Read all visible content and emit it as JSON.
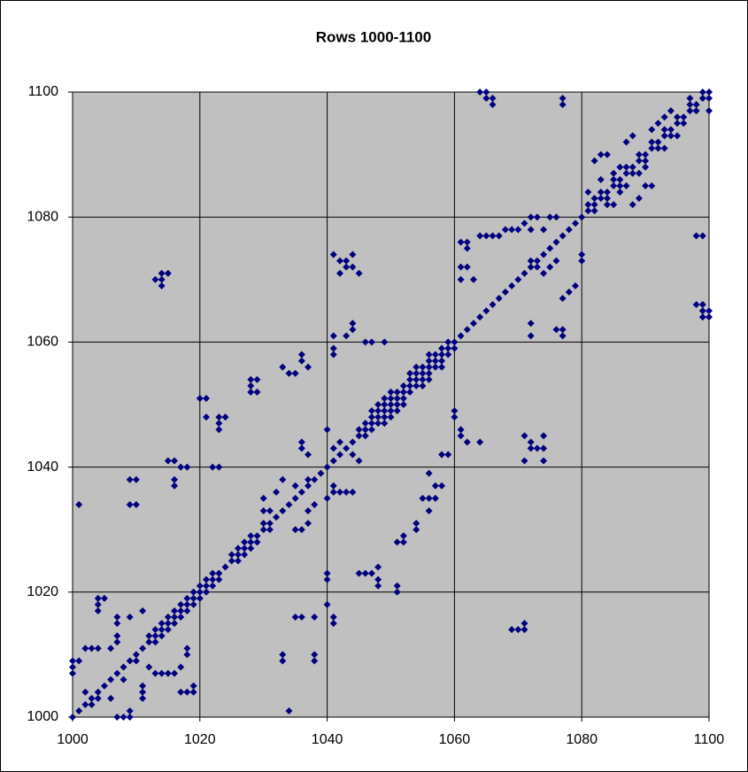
{
  "chart_data": {
    "type": "scatter",
    "title": "Rows 1000-1100",
    "xlim": [
      1000,
      1100
    ],
    "ylim": [
      1000,
      1100
    ],
    "xticks": [
      1000,
      1020,
      1040,
      1060,
      1080,
      1100
    ],
    "yticks": [
      1000,
      1020,
      1040,
      1060,
      1080,
      1100
    ],
    "grid": true,
    "background": "#c0c0c0",
    "series": [
      {
        "color": "#000080",
        "x": [
          1000,
          1001,
          1002,
          1003,
          1004,
          1005,
          1006,
          1007,
          1008,
          1009,
          1010,
          1011,
          1012,
          1013,
          1014,
          1015,
          1016,
          1017,
          1018,
          1019,
          1020,
          1021,
          1022,
          1023,
          1024,
          1025,
          1026,
          1027,
          1028,
          1029,
          1030,
          1031,
          1032,
          1033,
          1034,
          1035,
          1036,
          1037,
          1038,
          1039,
          1040,
          1041,
          1042,
          1043,
          1044,
          1045,
          1046,
          1047,
          1048,
          1049,
          1050,
          1051,
          1052,
          1053,
          1054,
          1055,
          1056,
          1057,
          1058,
          1059,
          1060,
          1061,
          1062,
          1063,
          1064,
          1065,
          1066,
          1067,
          1068,
          1069,
          1070,
          1071,
          1072,
          1073,
          1074,
          1075,
          1076,
          1077,
          1078,
          1079,
          1080,
          1081,
          1082,
          1083,
          1084,
          1085,
          1086,
          1087,
          1088,
          1089,
          1090,
          1091,
          1092,
          1093,
          1094,
          1095,
          1096,
          1097,
          1098,
          1099,
          1100
        ],
        "values": [
          1000,
          1001,
          1002,
          1003,
          1004,
          1005,
          1006,
          1007,
          1008,
          1009,
          1010,
          1011,
          1012,
          1013,
          1014,
          1015,
          1016,
          1017,
          1018,
          1019,
          1020,
          1021,
          1022,
          1023,
          1024,
          1025,
          1026,
          1027,
          1028,
          1029,
          1030,
          1031,
          1032,
          1033,
          1034,
          1035,
          1036,
          1037,
          1038,
          1039,
          1040,
          1041,
          1042,
          1043,
          1044,
          1045,
          1046,
          1047,
          1048,
          1049,
          1050,
          1051,
          1052,
          1053,
          1054,
          1055,
          1056,
          1057,
          1058,
          1059,
          1060,
          1061,
          1062,
          1063,
          1064,
          1065,
          1066,
          1067,
          1068,
          1069,
          1070,
          1071,
          1072,
          1073,
          1074,
          1075,
          1076,
          1077,
          1078,
          1079,
          1080,
          1081,
          1082,
          1083,
          1084,
          1085,
          1086,
          1087,
          1088,
          1089,
          1090,
          1091,
          1092,
          1093,
          1094,
          1095,
          1096,
          1097,
          1098,
          1099,
          1100
        ]
      },
      {
        "color": "#000080",
        "x": [
          1012,
          1013,
          1013,
          1014,
          1014,
          1015,
          1015,
          1016,
          1016,
          1017,
          1017,
          1018,
          1018,
          1019,
          1019,
          1020,
          1020,
          1021,
          1021,
          1022,
          1022,
          1023,
          1025,
          1026,
          1026,
          1027,
          1027,
          1028,
          1028,
          1029,
          1045,
          1046,
          1046,
          1047,
          1047,
          1048,
          1048,
          1049,
          1049,
          1050,
          1050,
          1051,
          1051,
          1052,
          1052,
          1053,
          1053,
          1054,
          1054,
          1055,
          1055,
          1056,
          1056,
          1057,
          1057,
          1058,
          1058,
          1059,
          1059,
          1060,
          1081,
          1082,
          1083,
          1084,
          1085,
          1086,
          1087,
          1088,
          1089,
          1090,
          1091,
          1092,
          1093,
          1094,
          1095,
          1096,
          1097,
          1098,
          1099,
          1100
        ],
        "values": [
          1013,
          1012,
          1014,
          1013,
          1015,
          1014,
          1016,
          1015,
          1017,
          1016,
          1018,
          1017,
          1019,
          1018,
          1020,
          1019,
          1021,
          1020,
          1022,
          1021,
          1023,
          1022,
          1026,
          1025,
          1027,
          1026,
          1028,
          1027,
          1029,
          1028,
          1046,
          1045,
          1047,
          1046,
          1048,
          1047,
          1049,
          1048,
          1050,
          1049,
          1051,
          1050,
          1052,
          1051,
          1053,
          1052,
          1054,
          1053,
          1055,
          1054,
          1056,
          1055,
          1057,
          1056,
          1058,
          1057,
          1059,
          1058,
          1060,
          1059,
          1082,
          1081,
          1084,
          1083,
          1086,
          1085,
          1088,
          1087,
          1090,
          1089,
          1092,
          1091,
          1094,
          1093,
          1096,
          1095,
          1098,
          1097,
          1100,
          1099
        ]
      },
      {
        "color": "#000080",
        "x": [
          1001,
          1000,
          1000,
          1000,
          1001,
          1002,
          1003,
          1004,
          1004,
          1004,
          1004,
          1005,
          1007,
          1007,
          1007,
          1007,
          1006,
          1009,
          1011,
          1009,
          1010,
          1009,
          1010,
          1013,
          1014,
          1014,
          1015,
          1014,
          1015,
          1016,
          1016,
          1016,
          1017,
          1018,
          1020,
          1021,
          1021,
          1022,
          1023,
          1023,
          1024,
          1023,
          1023,
          1028,
          1029,
          1028,
          1028,
          1029,
          1033,
          1034,
          1035,
          1036,
          1036,
          1037,
          1041,
          1042,
          1042,
          1043,
          1044,
          1044,
          1045,
          1043,
          1041,
          1041,
          1041,
          1043,
          1044,
          1044,
          1046,
          1047,
          1049,
          1064,
          1065,
          1065,
          1066,
          1066,
          1077,
          1077,
          1098,
          1099,
          1098,
          1099,
          1099,
          1100,
          1100,
          1099,
          1064,
          1065,
          1066,
          1067,
          1068,
          1069,
          1070,
          1071,
          1072,
          1073,
          1075,
          1076,
          1072,
          1074,
          1061,
          1062,
          1062,
          1061,
          1061,
          1062,
          1063,
          1072,
          1072,
          1035,
          1036,
          1038,
          1033,
          1033,
          1038,
          1038,
          1034,
          1040,
          1040,
          1040,
          1041,
          1041,
          1045,
          1046,
          1047,
          1048,
          1048,
          1048,
          1051,
          1051,
          1051,
          1052,
          1052,
          1054,
          1054,
          1055,
          1056,
          1057,
          1057,
          1056,
          1058,
          1056,
          1058,
          1059,
          1060,
          1060,
          1061,
          1061,
          1062,
          1064,
          1070,
          1071,
          1071,
          1069,
          1071,
          1071,
          1072,
          1072,
          1073,
          1074,
          1074,
          1074,
          1076,
          1077,
          1077,
          1002,
          1003,
          1004,
          1006,
          1007,
          1008,
          1009,
          1009,
          1011,
          1011,
          1011,
          1013,
          1014,
          1015,
          1016,
          1017,
          1018,
          1019,
          1019,
          1017,
          1018,
          1018,
          1012,
          1008,
          1010,
          1082,
          1083,
          1084,
          1087,
          1088,
          1086,
          1085,
          1083,
          1082,
          1081,
          1088,
          1089,
          1090,
          1091,
          1092,
          1093,
          1094,
          1095,
          1097,
          1100,
          1091,
          1093,
          1089,
          1087,
          1085,
          1084,
          1086,
          1090,
          1031,
          1030,
          1030,
          1030,
          1031,
          1032,
          1033,
          1035,
          1036,
          1037,
          1038,
          1037,
          1035,
          1037,
          1036,
          1036,
          1037,
          1040,
          1041,
          1042,
          1044,
          1045,
          1041,
          1042,
          1043,
          1044,
          1041,
          1040,
          1047,
          1049,
          1048,
          1050,
          1049,
          1051,
          1050,
          1052,
          1053,
          1055,
          1054,
          1056,
          1056,
          1058,
          1072,
          1073,
          1074,
          1075,
          1076,
          1077,
          1078,
          1079,
          1080,
          1080
        ],
        "values": [
          1034,
          1009,
          1008,
          1007,
          1009,
          1011,
          1011,
          1011,
          1019,
          1018,
          1017,
          1019,
          1016,
          1015,
          1013,
          1012,
          1011,
          1016,
          1017,
          1038,
          1038,
          1034,
          1034,
          1070,
          1070,
          1069,
          1071,
          1071,
          1041,
          1041,
          1038,
          1037,
          1040,
          1040,
          1051,
          1051,
          1048,
          1040,
          1040,
          1048,
          1048,
          1047,
          1046,
          1054,
          1054,
          1053,
          1052,
          1052,
          1056,
          1055,
          1055,
          1058,
          1057,
          1056,
          1074,
          1073,
          1071,
          1072,
          1072,
          1074,
          1071,
          1073,
          1061,
          1059,
          1058,
          1061,
          1063,
          1062,
          1060,
          1060,
          1060,
          1100,
          1100,
          1099,
          1099,
          1098,
          1099,
          1098,
          1077,
          1077,
          1066,
          1066,
          1065,
          1065,
          1064,
          1064,
          1077,
          1077,
          1077,
          1077,
          1078,
          1078,
          1078,
          1079,
          1080,
          1080,
          1080,
          1080,
          1078,
          1078,
          1076,
          1076,
          1075,
          1072,
          1070,
          1072,
          1070,
          1063,
          1061,
          1016,
          1016,
          1016,
          1010,
          1009,
          1010,
          1009,
          1001,
          1023,
          1022,
          1018,
          1016,
          1015,
          1023,
          1023,
          1023,
          1024,
          1022,
          1021,
          1021,
          1020,
          1028,
          1028,
          1029,
          1031,
          1030,
          1035,
          1035,
          1035,
          1037,
          1039,
          1037,
          1033,
          1042,
          1042,
          1049,
          1048,
          1046,
          1045,
          1044,
          1044,
          1014,
          1014,
          1015,
          1014,
          1045,
          1041,
          1044,
          1043,
          1043,
          1043,
          1045,
          1041,
          1062,
          1062,
          1061,
          1004,
          1002,
          1003,
          1003,
          1000,
          1000,
          1001,
          1000,
          1003,
          1004,
          1005,
          1007,
          1007,
          1007,
          1007,
          1004,
          1004,
          1004,
          1005,
          1008,
          1010,
          1011,
          1008,
          1006,
          1009,
          1089,
          1090,
          1090,
          1092,
          1093,
          1088,
          1087,
          1086,
          1083,
          1084,
          1082,
          1083,
          1085,
          1085,
          1095,
          1096,
          1097,
          1093,
          1099,
          1097,
          1094,
          1091,
          1087,
          1085,
          1082,
          1082,
          1084,
          1088,
          1030,
          1031,
          1033,
          1035,
          1033,
          1036,
          1038,
          1030,
          1030,
          1033,
          1034,
          1031,
          1037,
          1038,
          1043,
          1044,
          1042,
          1046,
          1043,
          1044,
          1042,
          1041,
          1037,
          1036,
          1036,
          1036,
          1036,
          1035,
          1049,
          1047,
          1050,
          1048,
          1051,
          1049,
          1052,
          1050,
          1055,
          1053,
          1056,
          1054,
          1058,
          1056,
          1073,
          1072,
          1071,
          1072,
          1073,
          1067,
          1068,
          1069,
          1073,
          1074
        ]
      }
    ]
  }
}
